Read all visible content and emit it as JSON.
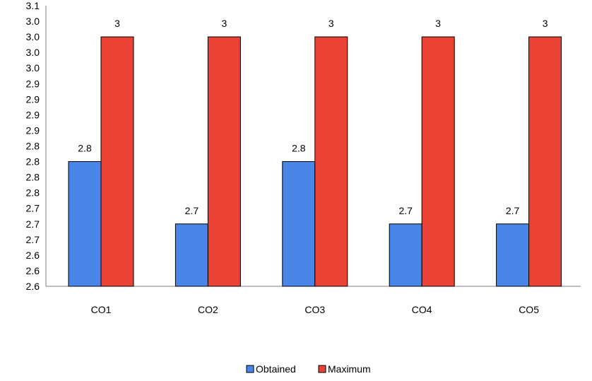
{
  "chart_data": {
    "type": "bar",
    "title": "",
    "xlabel": "",
    "ylabel": "",
    "categories": [
      "CO1",
      "CO2",
      "CO3",
      "CO4",
      "CO5"
    ],
    "series": [
      {
        "name": "Obtained",
        "color": "#4a86e8",
        "values": [
          2.8,
          2.7,
          2.8,
          2.7,
          2.7
        ],
        "labels": [
          "2.8",
          "2.7",
          "2.8",
          "2.7",
          "2.7"
        ]
      },
      {
        "name": "Maximum",
        "color": "#ea4335",
        "values": [
          3,
          3,
          3,
          3,
          3
        ],
        "labels": [
          "3",
          "3",
          "3",
          "3",
          "3"
        ]
      }
    ],
    "ylim": [
      2.6,
      3.05
    ],
    "yticks": [
      2.6,
      2.625,
      2.65,
      2.675,
      2.7,
      2.725,
      2.75,
      2.775,
      2.8,
      2.825,
      2.85,
      2.875,
      2.9,
      2.925,
      2.95,
      2.975,
      3.0,
      3.025,
      3.05
    ],
    "ytick_labels": [
      "2.6",
      "2.6",
      "2.6",
      "2.7",
      "2.7",
      "2.7",
      "2.8",
      "2.8",
      "2.8",
      "2.8",
      "2.9",
      "2.9",
      "2.9",
      "2.9",
      "3.0",
      "3.0",
      "3.0",
      "3.0",
      "3.1"
    ],
    "grid": false,
    "legend_position": "bottom"
  }
}
